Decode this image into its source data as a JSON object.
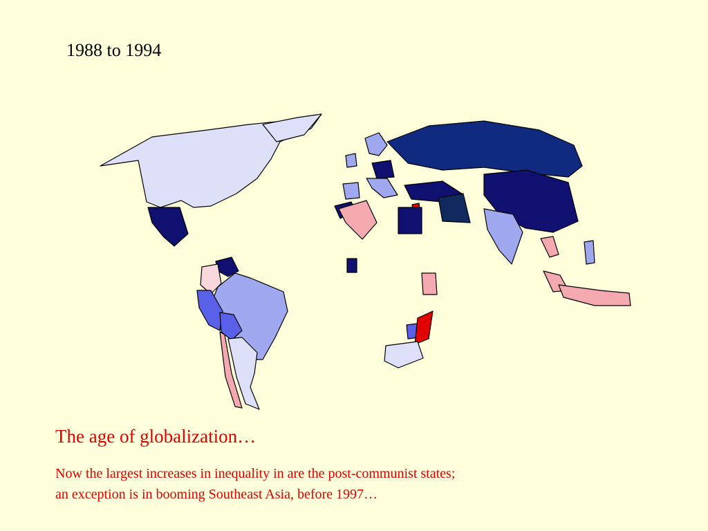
{
  "slide": {
    "title": "1988 to 1994",
    "heading": "The age of globalization…",
    "body": [
      "Now the largest increases in inequality in are the post-communist states;",
      "an exception is in booming Southeast Asia, before 1997…"
    ]
  }
}
